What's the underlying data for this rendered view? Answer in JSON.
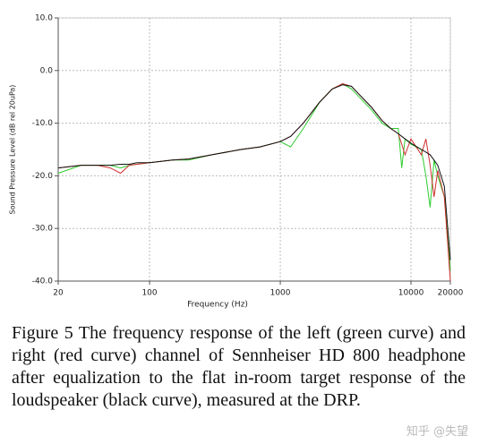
{
  "chart_data": {
    "type": "line",
    "x_label": "Frequency (Hz)",
    "y_label": "Sound Pressure Level (dB rel 20uPa)",
    "log_x": true,
    "grid": true,
    "xlim": [
      20,
      20000
    ],
    "xticks": [
      20,
      100,
      1000,
      10000,
      20000
    ],
    "ylim": [
      -40,
      10
    ],
    "yticks": [
      {
        "value": 10,
        "label": "10.0"
      },
      {
        "value": 0,
        "label": "0.0"
      },
      {
        "value": -10,
        "label": "-10.0"
      },
      {
        "value": -20,
        "label": "-20.0"
      },
      {
        "value": -30,
        "label": "-30.0"
      },
      {
        "value": -40,
        "label": "-40.0"
      }
    ],
    "x": [
      20,
      30,
      40,
      50,
      60,
      70,
      80,
      100,
      150,
      200,
      300,
      500,
      700,
      1000,
      1200,
      1500,
      2000,
      2500,
      3000,
      3500,
      4000,
      5000,
      6000,
      7000,
      8000,
      8500,
      9000,
      10000,
      12000,
      13000,
      14000,
      15000,
      16000,
      18000,
      20000
    ],
    "series": [
      {
        "color": "#2ecc2e",
        "values": [
          -19.5,
          -18,
          -18,
          -18,
          -18.5,
          -18,
          -17.8,
          -17.5,
          -17,
          -17,
          -16,
          -15,
          -14.5,
          -13.5,
          -14.5,
          -11,
          -6,
          -3.5,
          -2.5,
          -3.5,
          -5,
          -7.5,
          -10,
          -11,
          -11,
          -18.5,
          -13,
          -14,
          -15,
          -20,
          -26,
          -17,
          -20,
          -24,
          -38
        ]
      },
      {
        "color": "#d03030",
        "values": [
          -18.5,
          -18,
          -18,
          -18.5,
          -19.5,
          -18,
          -17.8,
          -17.5,
          -17,
          -16.8,
          -16,
          -15,
          -14.5,
          -13.5,
          -12.5,
          -10,
          -6,
          -3.5,
          -2.5,
          -3,
          -4.5,
          -7,
          -9.5,
          -11,
          -12,
          -14,
          -16,
          -13,
          -16,
          -13,
          -18,
          -24,
          -19,
          -24,
          -40
        ]
      },
      {
        "color": "#111111",
        "values": [
          -18.5,
          -18,
          -18,
          -18,
          -17.8,
          -17.8,
          -17.5,
          -17.5,
          -17,
          -16.8,
          -16,
          -15,
          -14.5,
          -13.5,
          -12.5,
          -10,
          -6,
          -3.5,
          -2.7,
          -3,
          -4.5,
          -7,
          -9.5,
          -11,
          -12,
          -12.5,
          -13,
          -13.8,
          -15,
          -15.5,
          -16,
          -17,
          -18,
          -22,
          -36
        ]
      }
    ]
  },
  "caption": "Figure 5 The frequency response of the left (green curve) and right (red curve) channel of Sennheiser HD 800 headphone after equalization to the flat in-room target response of the loudspeaker (black curve), measured at the DRP.",
  "watermark": "知乎 @失望"
}
